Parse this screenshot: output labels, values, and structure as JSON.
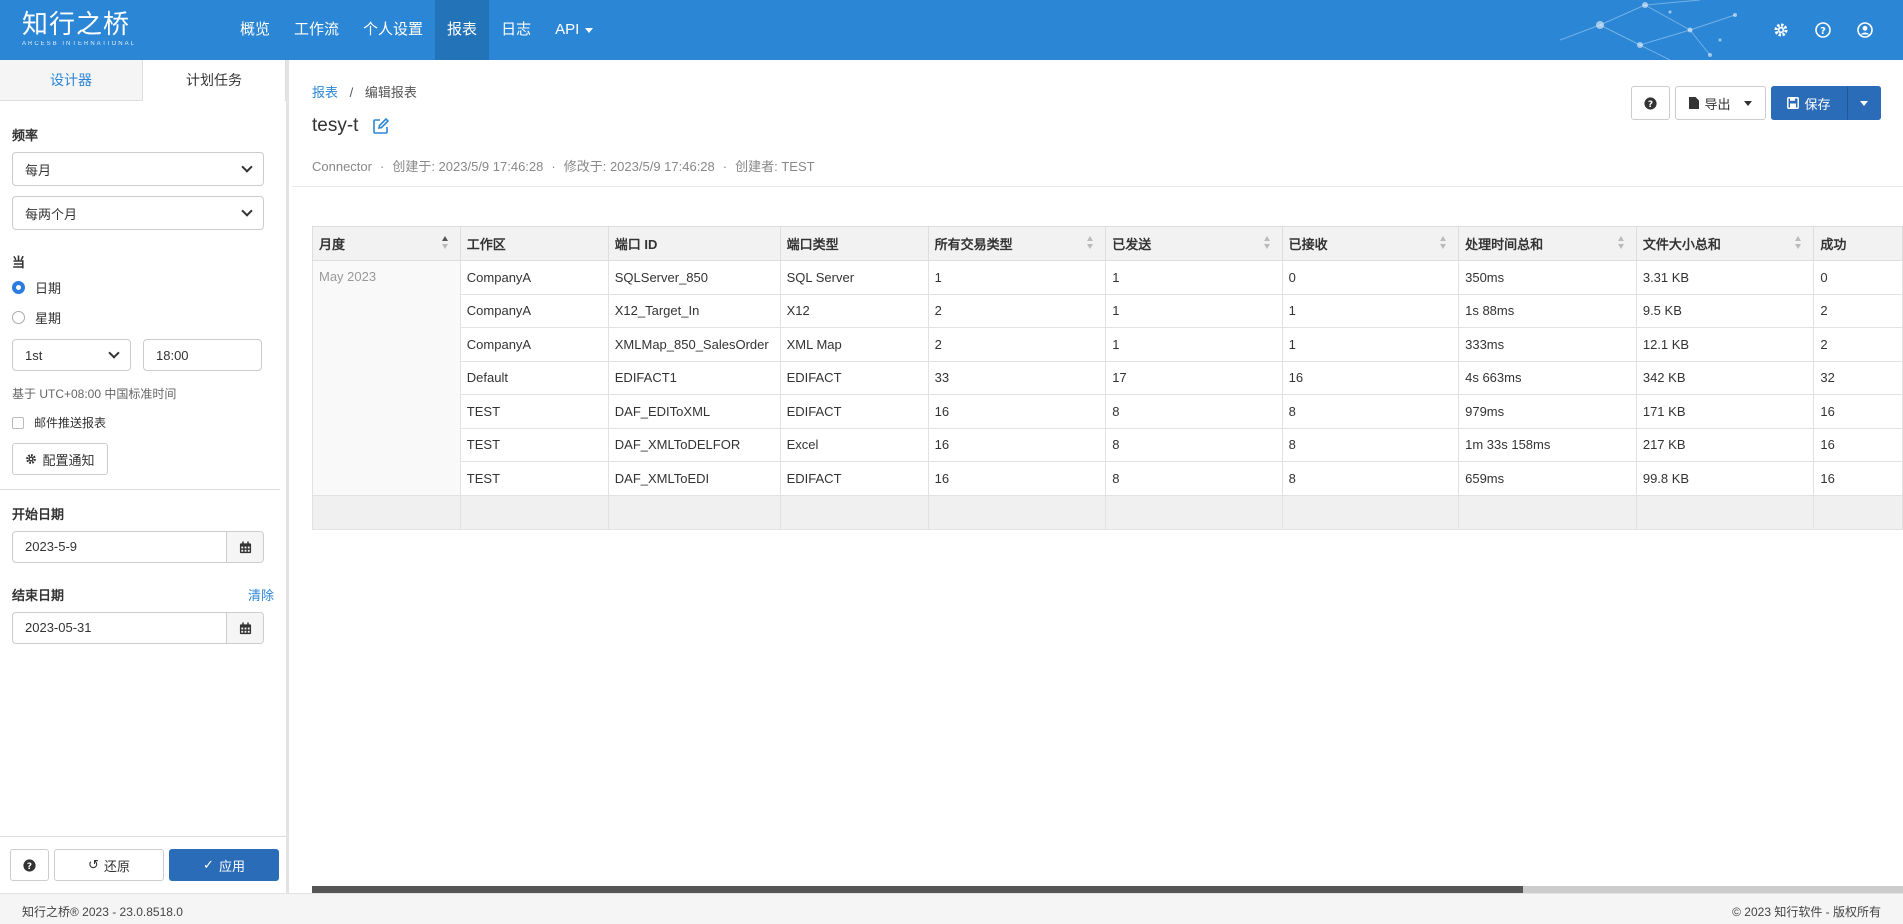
{
  "brand": {
    "logo_text": "知行之桥",
    "logo_sub": "ARCESB INTERNATIONAL"
  },
  "nav": {
    "items": [
      {
        "label": "概览"
      },
      {
        "label": "工作流"
      },
      {
        "label": "个人设置"
      },
      {
        "label": "报表",
        "active": true
      },
      {
        "label": "日志"
      },
      {
        "label": "API"
      }
    ]
  },
  "top_icons": [
    "gear-icon",
    "help-icon",
    "user-icon"
  ],
  "sidebar": {
    "tabs": [
      {
        "label": "设计器"
      },
      {
        "label": "计划任务",
        "active": true
      }
    ],
    "frequency_label": "频率",
    "frequency_value": "每月",
    "interval_value": "每两个月",
    "when_label": "当",
    "radio_date": "日期",
    "radio_week": "星期",
    "day_value": "1st",
    "time_value": "18:00",
    "timezone_note": "基于 UTC+08:00 中国标准时间",
    "email_label": "邮件推送报表",
    "config_button": "配置通知",
    "start_label": "开始日期",
    "start_value": "2023-5-9",
    "end_label": "结束日期",
    "clear_label": "清除",
    "end_value": "2023-05-31",
    "revert_label": "还原",
    "apply_label": "应用"
  },
  "main": {
    "breadcrumb_root": "报表",
    "breadcrumb_sep": "/",
    "breadcrumb_current": "编辑报表",
    "title": "tesy-t",
    "meta_source": "Connector",
    "meta_created": "创建于: 2023/5/9 17:46:28",
    "meta_modified": "修改于: 2023/5/9 17:46:28",
    "meta_creator": "创建者: TEST",
    "meta_sep": "·",
    "export_label": "导出",
    "save_label": "保存"
  },
  "table": {
    "columns": [
      "月度",
      "工作区",
      "端口 ID",
      "端口类型",
      "所有交易类型",
      "已发送",
      "已接收",
      "处理时间总和",
      "文件大小总和",
      "成功"
    ],
    "month": "May 2023",
    "rows": [
      [
        "CompanyA",
        "SQLServer_850",
        "SQL Server",
        "1",
        "1",
        "0",
        "350ms",
        "3.31 KB",
        "0"
      ],
      [
        "CompanyA",
        "X12_Target_In",
        "X12",
        "2",
        "1",
        "1",
        "1s 88ms",
        "9.5 KB",
        "2"
      ],
      [
        "CompanyA",
        "XMLMap_850_SalesOrder",
        "XML Map",
        "2",
        "1",
        "1",
        "333ms",
        "12.1 KB",
        "2"
      ],
      [
        "Default",
        "EDIFACT1",
        "EDIFACT",
        "33",
        "17",
        "16",
        "4s 663ms",
        "342 KB",
        "32"
      ],
      [
        "TEST",
        "DAF_EDIToXML",
        "EDIFACT",
        "16",
        "8",
        "8",
        "979ms",
        "171 KB",
        "16"
      ],
      [
        "TEST",
        "DAF_XMLToDELFOR",
        "Excel",
        "16",
        "8",
        "8",
        "1m 33s 158ms",
        "217 KB",
        "16"
      ],
      [
        "TEST",
        "DAF_XMLToEDI",
        "EDIFACT",
        "16",
        "8",
        "8",
        "659ms",
        "99.8 KB",
        "16"
      ]
    ]
  },
  "footer": {
    "left": "知行之桥® 2023 - 23.0.8518.0",
    "right": "© 2023 知行软件 - 版权所有"
  }
}
